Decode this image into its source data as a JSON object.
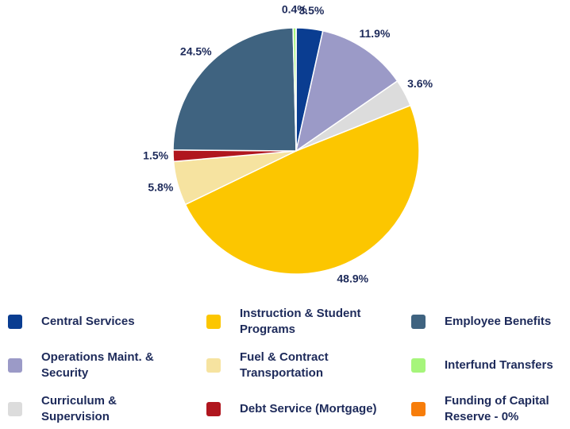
{
  "chart_data": {
    "type": "pie",
    "categories": [
      "Central Services",
      "Operations Maint. & Security",
      "Curriculum & Supervision",
      "Instruction & Student Programs",
      "Fuel & Contract Transportation",
      "Debt Service (Mortgage)",
      "Employee Benefits",
      "Interfund Transfers",
      "Funding of Capital Reserve - 0%"
    ],
    "values": [
      3.5,
      11.9,
      3.6,
      48.9,
      5.8,
      1.5,
      24.5,
      0.4,
      0
    ],
    "value_labels": [
      "3.5%",
      "11.9%",
      "3.6%",
      "48.9%",
      "5.8%",
      "1.5%",
      "24.5%",
      "0.4%",
      null
    ],
    "colors": [
      "#0a3d91",
      "#9b9ac7",
      "#dcdcdc",
      "#fcc600",
      "#f6e3a0",
      "#b0161e",
      "#3f6380",
      "#a6f57b",
      "#f77d0a"
    ]
  }
}
